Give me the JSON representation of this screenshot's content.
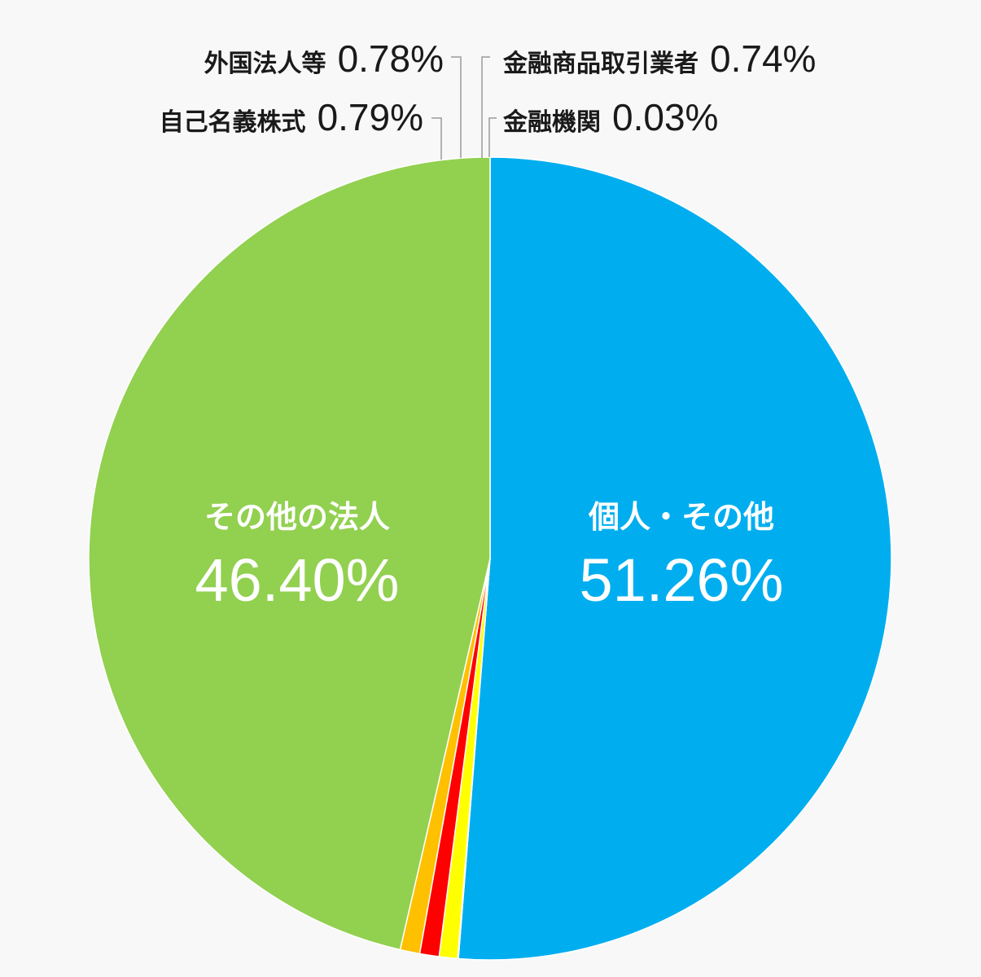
{
  "chart_data": {
    "type": "pie",
    "title": "",
    "slices": [
      {
        "label": "個人・その他",
        "value_text": "51.26%",
        "value": 51.26,
        "color": "#00AEEF"
      },
      {
        "label": "その他の法人",
        "value_text": "46.40%",
        "value": 46.4,
        "color": "#92D050"
      },
      {
        "label": "自己名義株式",
        "value_text": "0.79%",
        "value": 0.79,
        "color": "#FFC000"
      },
      {
        "label": "外国法人等",
        "value_text": "0.78%",
        "value": 0.78,
        "color": "#FF0000"
      },
      {
        "label": "金融商品取引業者",
        "value_text": "0.74%",
        "value": 0.74,
        "color": "#FFFF00"
      },
      {
        "label": "金融機関",
        "value_text": "0.03%",
        "value": 0.03,
        "color": "#00B0F0"
      }
    ]
  }
}
